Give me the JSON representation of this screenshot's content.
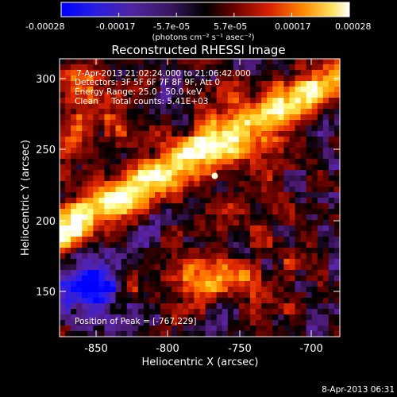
{
  "figure": {
    "title": "Reconstructed RHESSI Image",
    "date_stamp": "8-Apr-2013 06:31"
  },
  "colorbar": {
    "ticks": [
      "-0.00028",
      "-0.00017",
      "-5.7e-05",
      "5.7e-05",
      "0.00017",
      "0.00028"
    ],
    "unit_label": "(photons cm⁻² s⁻¹ asec⁻²)",
    "colormap": [
      "#0000ff",
      "#1a1aff",
      "#3a1fd0",
      "#5a24a6",
      "#4a1a70",
      "#000000",
      "#5a0000",
      "#a01000",
      "#e02800",
      "#ff6a00",
      "#ffa000",
      "#ffd030",
      "#ffff90",
      "#ffffff"
    ]
  },
  "annotations": {
    "time_range": "7-Apr-2013 21:02:24.000 to 21:06:42.000",
    "detectors": "Detectors: 3F 5F 6F 7F 8F 9F, Att 0",
    "energy_range": "Energy Range: 25.0 - 50.0 keV",
    "clean_line": "Clean     Total counts: 5.41E+03",
    "peak_position": "Position of Peak = [-767,229]"
  },
  "axes": {
    "xlabel": "Heliocentric X (arcsec)",
    "ylabel": "Heliocentric Y (arcsec)",
    "x_ticks": [
      "-850",
      "-800",
      "-750",
      "-700"
    ],
    "y_ticks": [
      "150",
      "200",
      "250",
      "300"
    ]
  },
  "image": {
    "x_range_arcsec": [
      -875,
      -680
    ],
    "y_range_arcsec": [
      115,
      312
    ],
    "peak_arcsec": [
      -767,
      229
    ],
    "intensity_range": [
      -0.00028,
      0.00028
    ]
  }
}
